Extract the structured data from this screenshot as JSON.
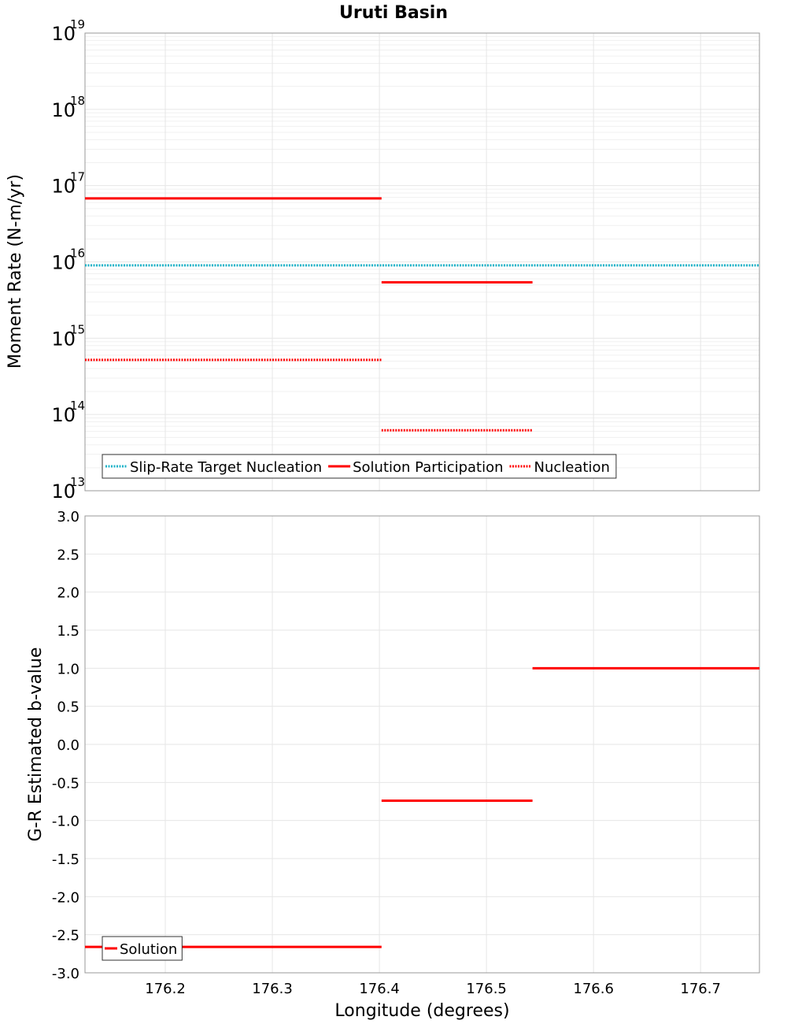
{
  "title": "Uruti Basin",
  "colors": {
    "target": "#1fb3c8",
    "solution": "#ff0000",
    "grid": "#e6e6e6",
    "frame": "#999999"
  },
  "chart_data": [
    {
      "type": "line",
      "ylabel": "Moment Rate (N-m/yr)",
      "yscale": "log",
      "ylim": [
        10000000000000.0,
        1e+19
      ],
      "xlim": [
        176.125,
        176.755
      ],
      "yticks": [
        {
          "base": "10",
          "exp": "13",
          "value": 10000000000000.0
        },
        {
          "base": "10",
          "exp": "14",
          "value": 100000000000000.0
        },
        {
          "base": "10",
          "exp": "15",
          "value": 1000000000000000.0
        },
        {
          "base": "10",
          "exp": "16",
          "value": 1e+16
        },
        {
          "base": "10",
          "exp": "17",
          "value": 1e+17
        },
        {
          "base": "10",
          "exp": "18",
          "value": 1e+18
        },
        {
          "base": "10",
          "exp": "19",
          "value": 1e+19
        }
      ],
      "legend_position": "bottom-left",
      "series": [
        {
          "name": "Slip-Rate Target Nucleation",
          "style": "dotted",
          "color": "#1fb3c8",
          "segments": [
            {
              "x": [
                176.125,
                176.755
              ],
              "y": 9000000000000000.0
            }
          ]
        },
        {
          "name": "Solution Participation",
          "style": "solid",
          "color": "#ff0000",
          "segments": [
            {
              "x": [
                176.125,
                176.402
              ],
              "y": 6.8e+16
            },
            {
              "x": [
                176.402,
                176.543
              ],
              "y": 5400000000000000.0
            }
          ]
        },
        {
          "name": "Nucleation",
          "style": "dotted",
          "color": "#ff0000",
          "segments": [
            {
              "x": [
                176.125,
                176.402
              ],
              "y": 520000000000000.0
            },
            {
              "x": [
                176.402,
                176.543
              ],
              "y": 62000000000000.0
            }
          ]
        }
      ]
    },
    {
      "type": "line",
      "xlabel": "Longitude (degrees)",
      "ylabel": "G-R Estimated b-value",
      "ylim": [
        -3.0,
        3.0
      ],
      "xlim": [
        176.125,
        176.755
      ],
      "xticks": [
        "176.2",
        "176.3",
        "176.4",
        "176.5",
        "176.6",
        "176.7"
      ],
      "yticks": [
        "-3.0",
        "-2.5",
        "-2.0",
        "-1.5",
        "-1.0",
        "-0.5",
        "0.0",
        "0.5",
        "1.0",
        "1.5",
        "2.0",
        "2.5",
        "3.0"
      ],
      "legend_position": "bottom-left",
      "series": [
        {
          "name": "Solution",
          "style": "solid",
          "color": "#ff0000",
          "segments": [
            {
              "x": [
                176.125,
                176.402
              ],
              "y": -2.66
            },
            {
              "x": [
                176.402,
                176.543
              ],
              "y": -0.74
            },
            {
              "x": [
                176.543,
                176.755
              ],
              "y": 1.0
            }
          ]
        }
      ]
    }
  ]
}
